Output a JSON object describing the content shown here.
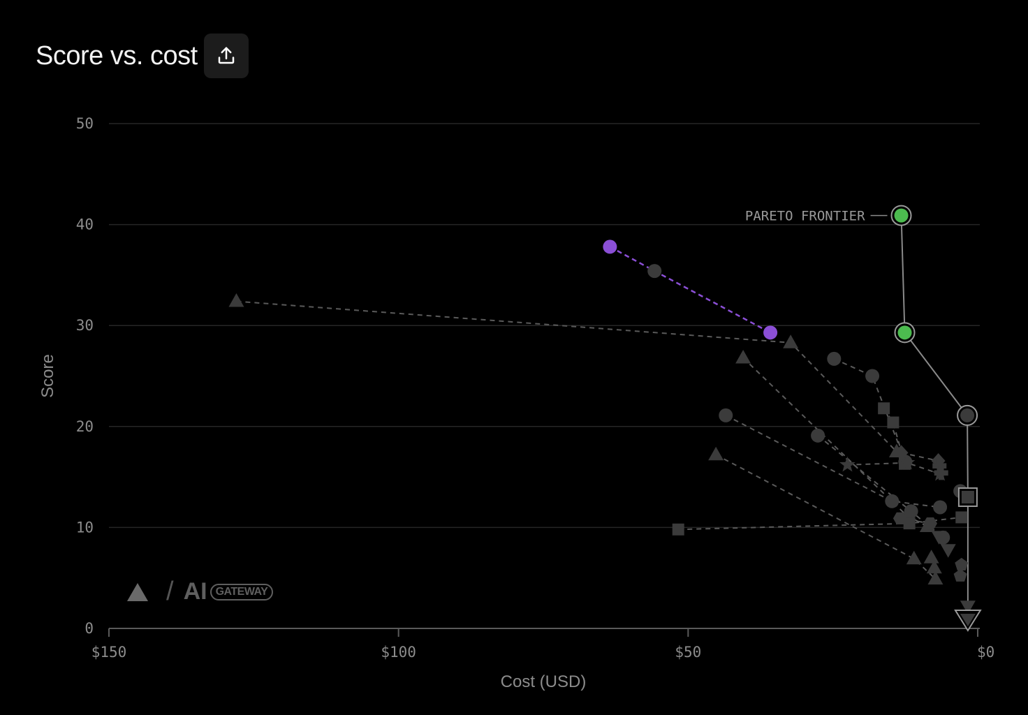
{
  "header": {
    "title": "Score vs. cost",
    "share_icon": "share-upload-icon"
  },
  "brand": {
    "logo_icon": "triangle-logo-icon",
    "slash": "/",
    "name": "AI",
    "badge": "GATEWAY"
  },
  "colors": {
    "background": "#000000",
    "pareto": "#4cbb4f",
    "highlight": "#8b4fd6",
    "neutral": "#3b3b3b",
    "gridline": "#262626"
  },
  "chart_data": {
    "type": "scatter",
    "title": "Score vs. cost",
    "xlabel": "Cost (USD)",
    "ylabel": "Score",
    "xlim": [
      150,
      0
    ],
    "ylim": [
      0,
      50
    ],
    "x_reversed": true,
    "xticks": [
      150,
      100,
      50,
      0
    ],
    "xtick_labels": [
      "$150",
      "$100",
      "$50",
      "$0"
    ],
    "yticks": [
      0,
      10,
      20,
      30,
      40,
      50
    ],
    "ytick_labels": [
      "0",
      "10",
      "20",
      "30",
      "40",
      "50"
    ],
    "grid": true,
    "annotation": {
      "text": "PARETO FRONTIER",
      "x": 13.2,
      "y": 40.9
    },
    "pareto_frontier": [
      {
        "x": 13.2,
        "y": 40.9
      },
      {
        "x": 12.6,
        "y": 29.3
      },
      {
        "x": 1.8,
        "y": 21.1
      },
      {
        "x": 1.7,
        "y": 13.0
      },
      {
        "x": 1.7,
        "y": 2.2
      },
      {
        "x": 1.7,
        "y": 0.9
      }
    ],
    "pareto_points": [
      {
        "x": 13.2,
        "y": 40.9,
        "marker": "circle",
        "color": "green"
      },
      {
        "x": 12.6,
        "y": 29.3,
        "marker": "circle",
        "color": "green"
      },
      {
        "x": 1.8,
        "y": 21.1,
        "marker": "circle",
        "color": "gray"
      },
      {
        "x": 1.7,
        "y": 13.0,
        "marker": "square",
        "color": "gray"
      },
      {
        "x": 1.7,
        "y": 0.9,
        "marker": "triangle-down",
        "color": "gray"
      }
    ],
    "highlighted_series": [
      {
        "x": 63.5,
        "y": 37.8
      },
      {
        "x": 55.8,
        "y": 35.4
      },
      {
        "x": 35.8,
        "y": 29.3
      }
    ],
    "series": [
      {
        "marker": "triangle",
        "points": [
          {
            "x": 128.0,
            "y": 32.4
          },
          {
            "x": 32.3,
            "y": 28.3
          },
          {
            "x": 14.0,
            "y": 17.5
          }
        ]
      },
      {
        "marker": "circle",
        "points": [
          {
            "x": 24.8,
            "y": 26.7
          },
          {
            "x": 18.2,
            "y": 25.0
          },
          {
            "x": 12.5,
            "y": 16.5
          }
        ]
      },
      {
        "marker": "triangle",
        "points": [
          {
            "x": 40.5,
            "y": 26.8
          },
          {
            "x": 12.3,
            "y": 11.2
          },
          {
            "x": 8.7,
            "y": 10.1
          }
        ]
      },
      {
        "marker": "circle",
        "points": [
          {
            "x": 43.5,
            "y": 21.1
          },
          {
            "x": 14.8,
            "y": 12.6
          },
          {
            "x": 6.5,
            "y": 12.0
          }
        ]
      },
      {
        "marker": "square",
        "points": [
          {
            "x": 16.2,
            "y": 21.8
          },
          {
            "x": 14.6,
            "y": 20.4
          },
          {
            "x": 12.6,
            "y": 16.3
          }
        ]
      },
      {
        "marker": "triangle",
        "points": [
          {
            "x": 45.2,
            "y": 17.2
          },
          {
            "x": 11.0,
            "y": 6.9
          },
          {
            "x": 7.3,
            "y": 4.9
          }
        ]
      },
      {
        "marker": "circle",
        "points": [
          {
            "x": 27.6,
            "y": 19.1
          },
          {
            "x": 11.5,
            "y": 11.6
          },
          {
            "x": 6.0,
            "y": 9.0
          }
        ]
      },
      {
        "marker": "square",
        "points": [
          {
            "x": 51.7,
            "y": 9.8
          },
          {
            "x": 11.8,
            "y": 10.4
          },
          {
            "x": 2.8,
            "y": 11.0
          }
        ]
      },
      {
        "marker": "star",
        "points": [
          {
            "x": 22.5,
            "y": 16.2
          },
          {
            "x": 12.2,
            "y": 16.4
          },
          {
            "x": 6.5,
            "y": 15.3
          }
        ]
      },
      {
        "marker": "diamond",
        "points": [
          {
            "x": 13.2,
            "y": 17.4
          },
          {
            "x": 6.8,
            "y": 16.6
          }
        ]
      },
      {
        "marker": "cross",
        "points": [
          {
            "x": 6.6,
            "y": 16.1
          },
          {
            "x": 6.3,
            "y": 15.4
          }
        ]
      },
      {
        "marker": "hexagon",
        "points": [
          {
            "x": 13.4,
            "y": 10.9
          },
          {
            "x": 8.2,
            "y": 10.4
          }
        ]
      },
      {
        "marker": "triangle-down",
        "points": [
          {
            "x": 6.7,
            "y": 9.1
          },
          {
            "x": 5.1,
            "y": 7.8
          }
        ]
      },
      {
        "marker": "triangle",
        "points": [
          {
            "x": 8.0,
            "y": 7.0
          },
          {
            "x": 7.5,
            "y": 6.0
          }
        ]
      },
      {
        "marker": "pentagon",
        "points": [
          {
            "x": 2.8,
            "y": 6.3
          },
          {
            "x": 3.0,
            "y": 5.2
          }
        ]
      },
      {
        "marker": "circle",
        "points": [
          {
            "x": 3.0,
            "y": 13.6
          }
        ]
      },
      {
        "marker": "triangle-down",
        "points": [
          {
            "x": 1.7,
            "y": 2.2
          }
        ]
      }
    ]
  }
}
